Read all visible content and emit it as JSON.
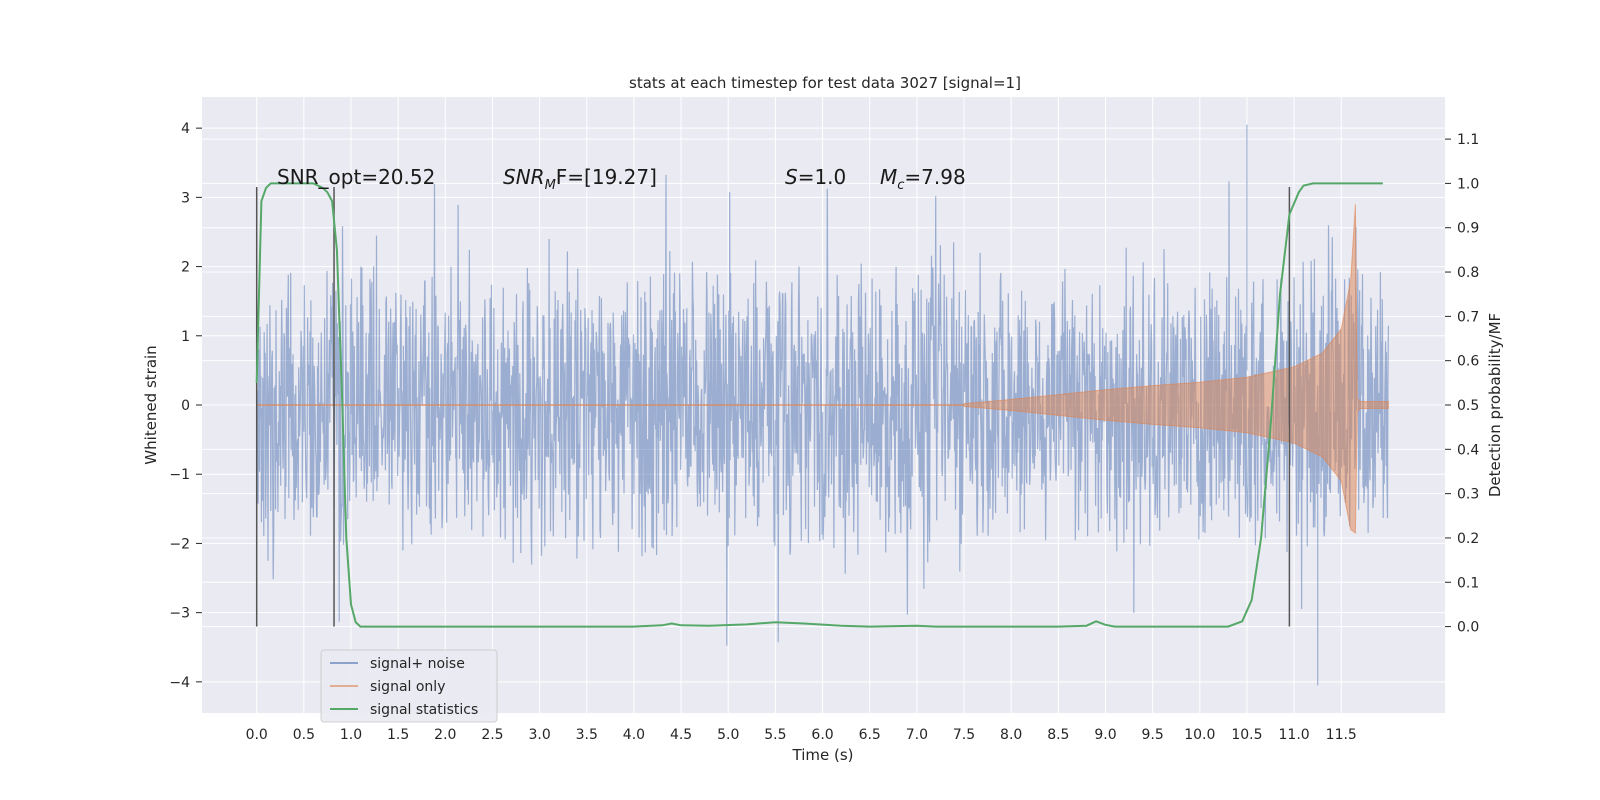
{
  "chart_data": {
    "type": "line",
    "title": "stats at each timestep for test data 3027 [signal=1]",
    "xlabel": "Time (s)",
    "ylabel": "Whitened strain",
    "y2label": "Detection probability/MF",
    "xlim": [
      -0.58,
      12.6
    ],
    "ylim": [
      -4.45,
      4.45
    ],
    "y2lim": [
      -0.195,
      1.195
    ],
    "xticks": [
      0.0,
      0.5,
      1.0,
      1.5,
      2.0,
      2.5,
      3.0,
      3.5,
      4.0,
      4.5,
      5.0,
      5.5,
      6.0,
      6.5,
      7.0,
      7.5,
      8.0,
      8.5,
      9.0,
      9.5,
      10.0,
      10.5,
      11.0,
      11.5
    ],
    "yticks": [
      -4,
      -3,
      -2,
      -1,
      0,
      1,
      2,
      3,
      4
    ],
    "y2ticks": [
      0.0,
      0.1,
      0.2,
      0.3,
      0.4,
      0.5,
      0.6,
      0.7,
      0.8,
      0.9,
      1.0,
      1.1
    ],
    "grid": true,
    "legend_position": "lower-left",
    "annotations": [
      "SNR_opt=20.52",
      "SNR",
      "M",
      "F=[19.27]",
      "S",
      "=1.0",
      "M",
      "c",
      "=7.98"
    ],
    "vlines_x": [
      0.0,
      0.82,
      10.95
    ],
    "vlines_y_range": [
      -3.2,
      3.15
    ],
    "series": [
      {
        "name": "signal+ noise",
        "color": "#4c72b0",
        "alpha": 0.5,
        "x_range": [
          0.0,
          12.0
        ],
        "description_values": {
          "typical_envelope": [
            -2.0,
            2.6
          ],
          "peak_max": 4.05,
          "peak_max_x": 10.5,
          "peak_min": -4.05,
          "peak_min_x": 11.25
        }
      },
      {
        "name": "signal only",
        "color": "#dd8452",
        "alpha": 0.5,
        "x_range": [
          0.0,
          12.0
        ],
        "envelope_x": [
          7.5,
          8.0,
          8.5,
          9.0,
          9.5,
          10.0,
          10.5,
          11.0,
          11.3,
          11.5,
          11.6,
          11.65,
          11.67,
          11.7,
          12.0
        ],
        "envelope_y": [
          0.02,
          0.08,
          0.15,
          0.22,
          0.28,
          0.33,
          0.4,
          0.55,
          0.75,
          1.1,
          1.8,
          2.9,
          0.1,
          0.05,
          0.05
        ]
      },
      {
        "name": "signal statistics",
        "color": "#55a868",
        "x": [
          0.0,
          0.05,
          0.1,
          0.15,
          0.25,
          0.4,
          0.6,
          0.7,
          0.75,
          0.8,
          0.85,
          0.9,
          0.95,
          1.0,
          1.05,
          1.1,
          1.2,
          1.5,
          2.0,
          3.0,
          4.0,
          4.3,
          4.4,
          4.5,
          4.8,
          5.2,
          5.5,
          5.8,
          6.2,
          6.5,
          7.0,
          7.2,
          7.5,
          8.0,
          8.5,
          8.8,
          8.9,
          9.0,
          9.1,
          9.5,
          10.0,
          10.3,
          10.45,
          10.55,
          10.65,
          10.75,
          10.85,
          10.95,
          11.05,
          11.1,
          11.2,
          11.4,
          11.94
        ],
        "y": [
          0.55,
          0.96,
          0.99,
          1.0,
          1.0,
          1.0,
          1.0,
          0.99,
          0.98,
          0.96,
          0.85,
          0.55,
          0.2,
          0.05,
          0.01,
          0.0,
          0.0,
          0.0,
          0.0,
          0.0,
          0.0,
          0.003,
          0.007,
          0.003,
          0.002,
          0.005,
          0.01,
          0.007,
          0.002,
          0.0,
          0.002,
          0.0,
          0.0,
          0.0,
          0.0,
          0.002,
          0.012,
          0.004,
          0.0,
          0.0,
          0.0,
          0.0,
          0.012,
          0.06,
          0.2,
          0.45,
          0.75,
          0.93,
          0.98,
          0.995,
          1.0,
          1.0,
          1.0
        ]
      }
    ]
  }
}
